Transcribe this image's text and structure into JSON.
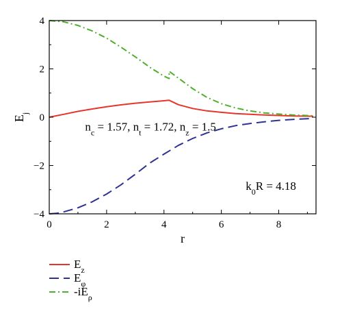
{
  "chart_data": {
    "type": "line",
    "xlabel": "r",
    "ylabel": "E",
    "ylabel_sub": "j",
    "xlim": [
      0,
      9.3
    ],
    "ylim": [
      -4,
      4
    ],
    "xticks": [
      "0",
      "2",
      "4",
      "6",
      "8"
    ],
    "yticks": [
      "4",
      "2",
      "0",
      "−2",
      "−4"
    ],
    "grid": false,
    "legend_position": "below",
    "annotations": [
      {
        "id": "indices",
        "parts": [
          {
            "t": "n"
          },
          {
            "t": "c",
            "sub": true
          },
          {
            "t": " = 1.57, n"
          },
          {
            "t": "t",
            "sub": true
          },
          {
            "t": " = 1.72, n"
          },
          {
            "t": "z",
            "sub": true
          },
          {
            "t": " = 1.5"
          }
        ],
        "x_data": 1.25,
        "y_data": -0.55
      },
      {
        "id": "k0r",
        "parts": [
          {
            "t": "k"
          },
          {
            "t": "0",
            "sub": true
          },
          {
            "t": "R = 4.18"
          }
        ],
        "x_data": 6.85,
        "y_data": -3.0
      }
    ],
    "series": [
      {
        "name": "E",
        "name_sub": "z",
        "color": "#e8332a",
        "dash": "solid",
        "x": [
          0.0,
          0.5,
          1.0,
          1.5,
          2.0,
          2.5,
          3.0,
          3.5,
          4.0,
          4.18,
          4.5,
          5.0,
          5.5,
          6.0,
          6.5,
          7.0,
          7.5,
          8.0,
          8.5,
          9.2
        ],
        "y": [
          0.0,
          0.12,
          0.24,
          0.34,
          0.43,
          0.51,
          0.58,
          0.63,
          0.68,
          0.7,
          0.52,
          0.36,
          0.26,
          0.2,
          0.15,
          0.12,
          0.09,
          0.07,
          0.05,
          0.04
        ]
      },
      {
        "name": "E",
        "name_sub": "φ",
        "color": "#2e3192",
        "dash": "long",
        "x": [
          0.0,
          0.25,
          0.5,
          1.0,
          1.5,
          2.0,
          2.5,
          3.0,
          3.5,
          4.0,
          4.18,
          4.5,
          5.0,
          5.5,
          6.0,
          6.5,
          7.0,
          7.5,
          8.0,
          8.5,
          9.2
        ],
        "y": [
          -4.0,
          -3.98,
          -3.92,
          -3.75,
          -3.5,
          -3.18,
          -2.8,
          -2.36,
          -1.9,
          -1.53,
          -1.4,
          -1.17,
          -0.88,
          -0.65,
          -0.48,
          -0.35,
          -0.26,
          -0.19,
          -0.13,
          -0.09,
          -0.05
        ]
      },
      {
        "name": "-iE",
        "name_sub": "ρ",
        "color": "#4daf2b",
        "dash": "dashdot",
        "x": [
          0.0,
          0.5,
          1.0,
          1.5,
          2.0,
          2.5,
          3.0,
          3.5,
          4.0,
          4.18,
          4.18,
          4.5,
          5.0,
          5.5,
          6.0,
          6.5,
          7.0,
          7.5,
          8.0,
          8.5,
          9.2
        ],
        "y": [
          4.0,
          3.95,
          3.8,
          3.57,
          3.27,
          2.9,
          2.5,
          2.07,
          1.7,
          1.6,
          1.9,
          1.62,
          1.18,
          0.82,
          0.56,
          0.38,
          0.26,
          0.18,
          0.13,
          0.09,
          0.06
        ]
      }
    ]
  }
}
